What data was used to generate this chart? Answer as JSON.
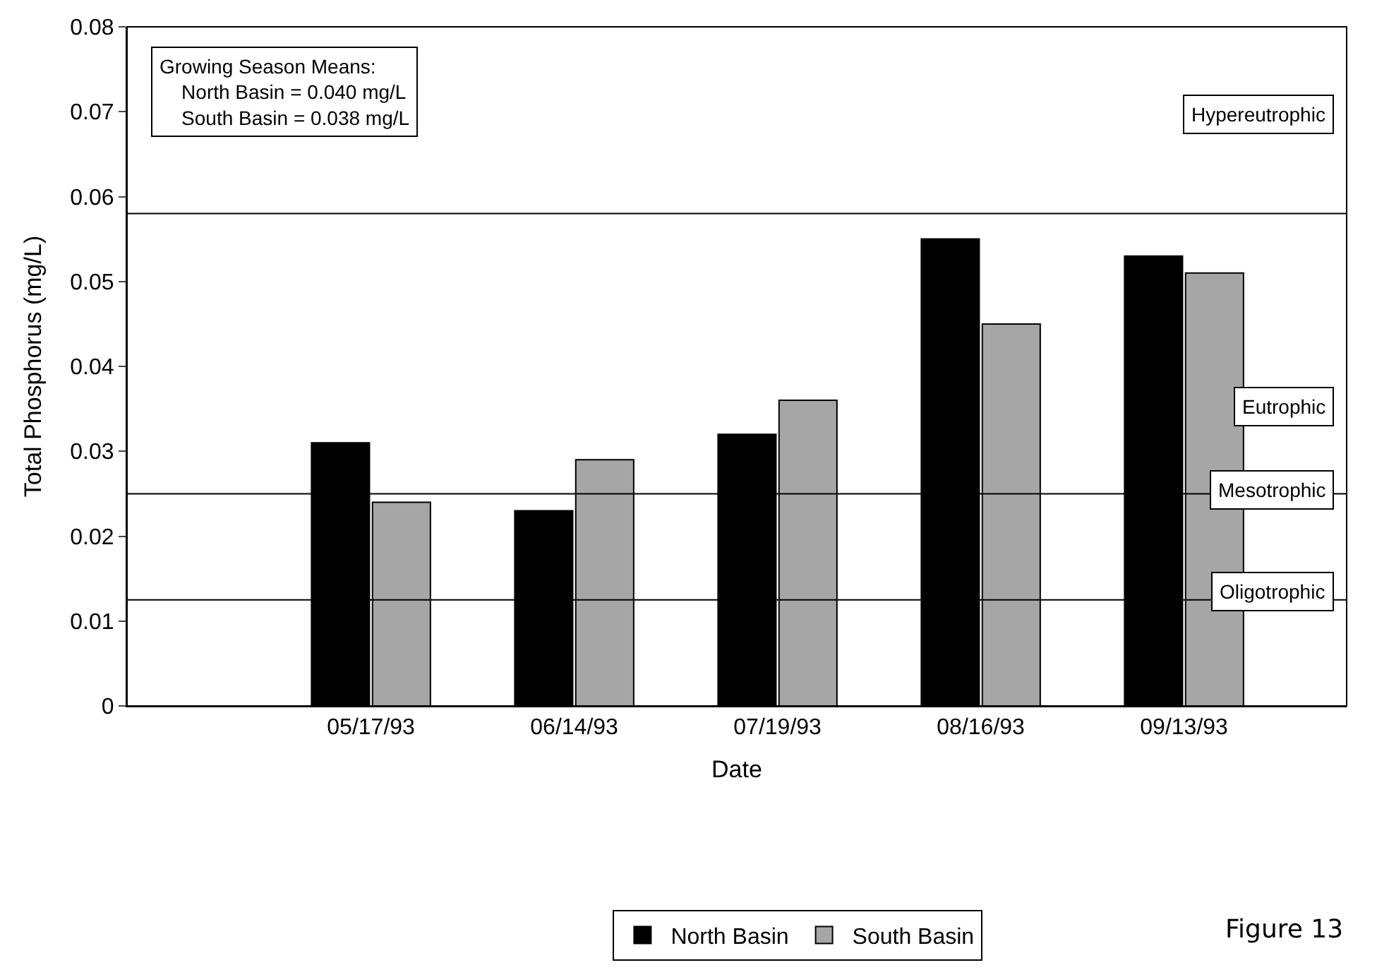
{
  "chart_data": {
    "type": "bar",
    "xlabel": "Date",
    "ylabel": "Total Phosphorus (mg/L)",
    "categories": [
      "05/17/93",
      "06/14/93",
      "07/19/93",
      "08/16/93",
      "09/13/93"
    ],
    "series": [
      {
        "name": "North Basin",
        "color": "#000000",
        "values": [
          0.031,
          0.023,
          0.032,
          0.055,
          0.053
        ]
      },
      {
        "name": "South Basin",
        "color": "#a6a6a6",
        "values": [
          0.024,
          0.029,
          0.036,
          0.045,
          0.051
        ]
      }
    ],
    "ylim": [
      0,
      0.08
    ],
    "yticks": [
      0,
      0.01,
      0.02,
      0.03,
      0.04,
      0.05,
      0.06,
      0.07,
      0.08
    ],
    "ref_lines": [
      {
        "axis": "y",
        "value": 0.0125
      },
      {
        "axis": "y",
        "value": 0.025
      },
      {
        "axis": "y",
        "value": 0.058
      }
    ],
    "annotations": [
      "Growing Season Means:\n   North Basin = 0.040 mg/L\n   South Basin = 0.038 mg/L",
      "Figure 13",
      "Oligotrophic",
      "Mesotrophic",
      "Eutrophic",
      "Hypereutrophic"
    ],
    "legend": "bottom"
  }
}
